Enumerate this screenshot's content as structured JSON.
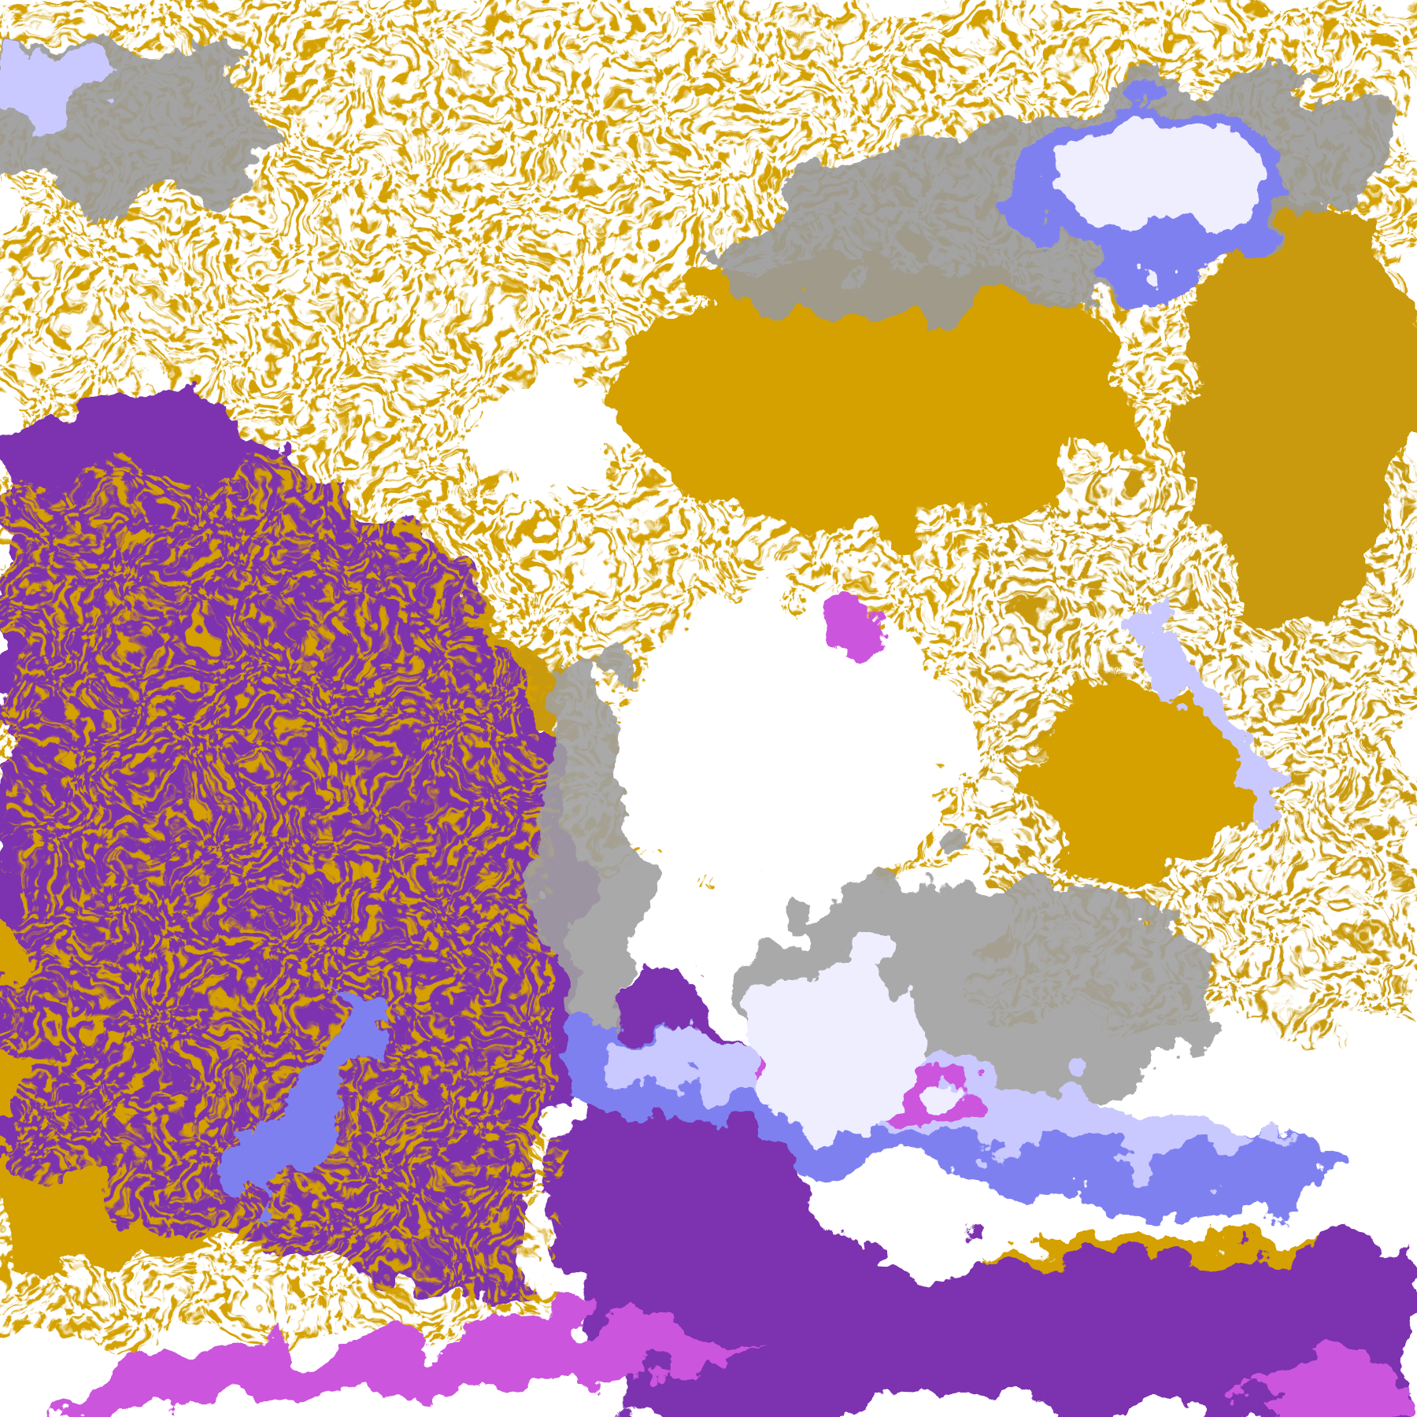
{
  "image": {
    "kind": "false-color satellite cloud imagery",
    "palette": {
      "clear": "#ffffff",
      "gold": "#d4a106",
      "dark_gold": "#b8860b",
      "purple": "#7d33b0",
      "gray": "#9a9a9a",
      "lavender": "#c9c9ff",
      "pale": "#eeeeff",
      "periwinkle": "#7f80f0",
      "magenta": "#cc55dd"
    }
  }
}
